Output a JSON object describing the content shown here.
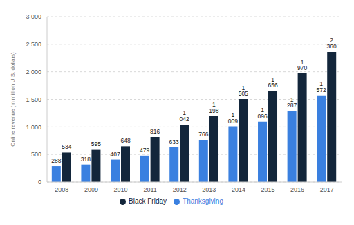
{
  "chart_data": {
    "type": "bar",
    "categories": [
      "2008",
      "2009",
      "2010",
      "2011",
      "2012",
      "2013",
      "2014",
      "2015",
      "2016",
      "2017"
    ],
    "series": [
      {
        "name": "Thanksgiving",
        "color": "#3a80e0",
        "values": [
          288,
          318,
          407,
          479,
          633,
          766,
          1009,
          1096,
          1287,
          1572
        ],
        "value_labels": [
          "288",
          "318",
          "407",
          "479",
          "633",
          "766",
          "1 009",
          "1 096",
          "1 287",
          "1 572"
        ]
      },
      {
        "name": "Black Friday",
        "color": "#13263b",
        "values": [
          534,
          595,
          648,
          816,
          1042,
          1198,
          1505,
          1656,
          1970,
          2360
        ],
        "value_labels": [
          "534",
          "595",
          "648",
          "816",
          "1 042",
          "1 198",
          "1 505",
          "1 656",
          "1 970",
          "2 360"
        ]
      }
    ],
    "y_label": "Online revenue (in million U.S. dollars)",
    "ylim": [
      0,
      3000
    ],
    "yticks": [
      0,
      500,
      {
        "value": 1000,
        "label": "1 000"
      },
      {
        "value": 1500,
        "label": "1 500"
      },
      {
        "value": 2000,
        "label": "2 000"
      },
      {
        "value": 2500,
        "label": "2 500"
      },
      {
        "value": 3000,
        "label": "3 000"
      }
    ],
    "grid": true,
    "legend": "bottom",
    "data_labels": true
  }
}
